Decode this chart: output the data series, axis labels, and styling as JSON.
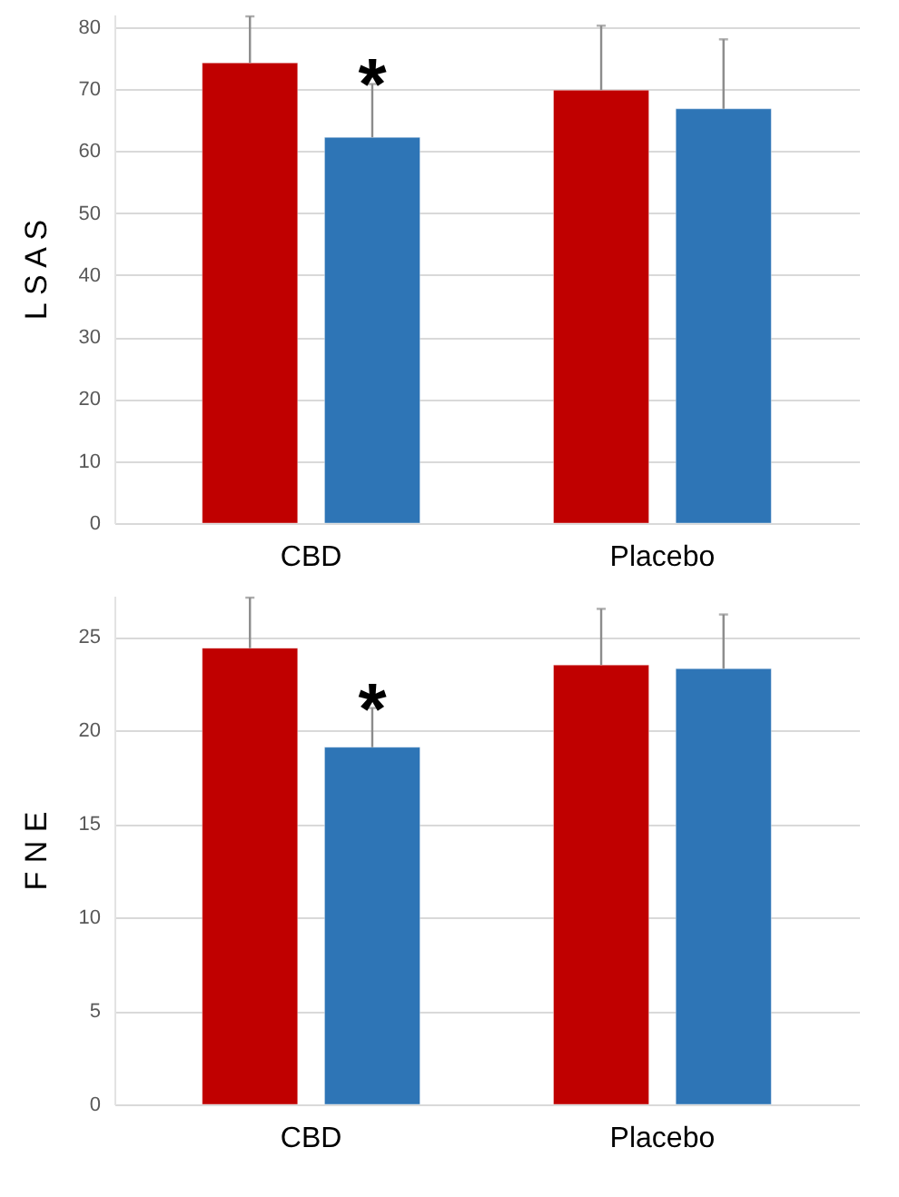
{
  "chart_data": [
    {
      "type": "bar",
      "ylabel": "L S A S",
      "categories": [
        "CBD",
        "Placebo"
      ],
      "series": [
        {
          "color": "#c00000",
          "values": [
            74.2,
            69.8
          ],
          "errors": [
            [
              74.2,
              81.7
            ],
            [
              69.8,
              80.2
            ]
          ]
        },
        {
          "color": "#2e75b6",
          "values": [
            62.2,
            66.8
          ],
          "errors": [
            [
              62.2,
              70.8
            ],
            [
              66.8,
              78.0
            ]
          ]
        }
      ],
      "ylim": [
        0,
        82
      ],
      "yticks": [
        0,
        10,
        20,
        30,
        40,
        50,
        60,
        70,
        80
      ],
      "grid": "y",
      "annotations": [
        "*"
      ]
    },
    {
      "type": "bar",
      "ylabel": "F N E",
      "categories": [
        "CBD",
        "Placebo"
      ],
      "series": [
        {
          "color": "#c00000",
          "values": [
            24.4,
            23.5
          ],
          "errors": [
            [
              24.4,
              27.1
            ],
            [
              23.5,
              26.5
            ]
          ]
        },
        {
          "color": "#2e75b6",
          "values": [
            19.1,
            23.3
          ],
          "errors": [
            [
              19.1,
              21.2
            ],
            [
              23.3,
              26.2
            ]
          ]
        }
      ],
      "ylim": [
        0,
        27.2
      ],
      "yticks": [
        0,
        5,
        10,
        15,
        20,
        25
      ],
      "grid": "y",
      "annotations": [
        "*"
      ]
    }
  ]
}
